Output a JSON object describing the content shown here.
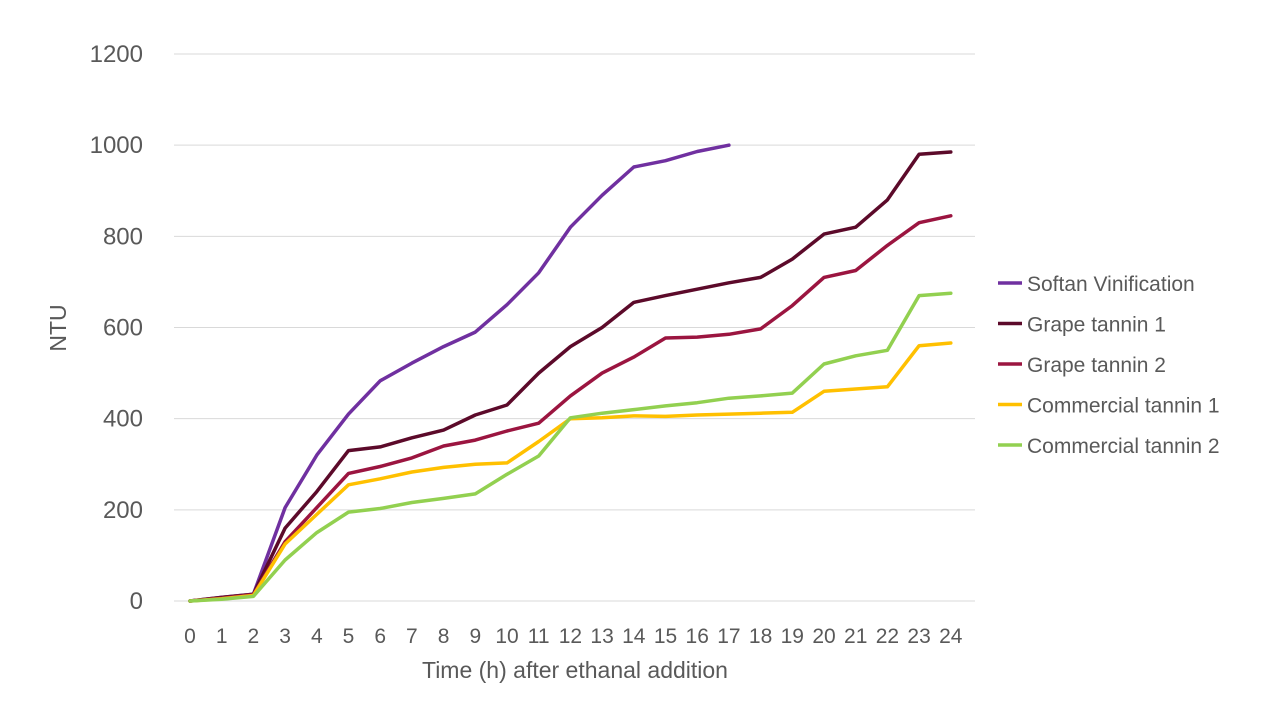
{
  "chart_data": {
    "type": "line",
    "title": "",
    "xlabel": "Time (h) after ethanal addition",
    "ylabel": "NTU",
    "x": [
      0,
      1,
      2,
      3,
      4,
      5,
      6,
      7,
      8,
      9,
      10,
      11,
      12,
      13,
      14,
      15,
      16,
      17,
      18,
      19,
      20,
      21,
      22,
      23,
      24
    ],
    "x_tick_labels": [
      "0",
      "1",
      "2",
      "3",
      "4",
      "5",
      "6",
      "7",
      "8",
      "9",
      "10",
      "11",
      "12",
      "13",
      "14",
      "15",
      "16",
      "17",
      "18",
      "19",
      "20",
      "21",
      "22",
      "23",
      "24"
    ],
    "ylim": [
      0,
      1200
    ],
    "y_ticks": [
      0,
      200,
      400,
      600,
      800,
      1000,
      1200
    ],
    "y_tick_labels": [
      "0",
      "200",
      "400",
      "600",
      "800",
      "1000",
      "1200"
    ],
    "grid": true,
    "legend_position": "right",
    "series": [
      {
        "name": "Softan Vinification",
        "color": "#7030a0",
        "values": [
          0,
          8,
          15,
          205,
          320,
          410,
          483,
          522,
          558,
          590,
          650,
          720,
          820,
          890,
          952,
          966,
          986,
          1000,
          null,
          null,
          null,
          null,
          null,
          null,
          null
        ]
      },
      {
        "name": "Grape tannin 1",
        "color": "#5c0a2a",
        "values": [
          0,
          8,
          15,
          160,
          240,
          330,
          338,
          358,
          375,
          408,
          430,
          500,
          558,
          600,
          655,
          670,
          684,
          698,
          710,
          750,
          805,
          820,
          880,
          980,
          985
        ]
      },
      {
        "name": "Grape tannin 2",
        "color": "#9b1540",
        "values": [
          0,
          6,
          14,
          130,
          205,
          280,
          295,
          314,
          340,
          353,
          373,
          390,
          450,
          500,
          535,
          577,
          579,
          585,
          597,
          648,
          710,
          725,
          780,
          830,
          845
        ]
      },
      {
        "name": "Commercial tannin 1",
        "color": "#ffc000",
        "values": [
          0,
          5,
          12,
          125,
          190,
          255,
          268,
          283,
          293,
          300,
          303,
          350,
          400,
          402,
          406,
          405,
          408,
          410,
          412,
          414,
          460,
          465,
          470,
          560,
          566
        ]
      },
      {
        "name": "Commercial tannin 2",
        "color": "#92d050",
        "values": [
          0,
          4,
          10,
          90,
          150,
          195,
          203,
          216,
          225,
          235,
          278,
          318,
          402,
          412,
          420,
          428,
          435,
          445,
          450,
          456,
          520,
          538,
          550,
          670,
          675
        ]
      }
    ]
  }
}
